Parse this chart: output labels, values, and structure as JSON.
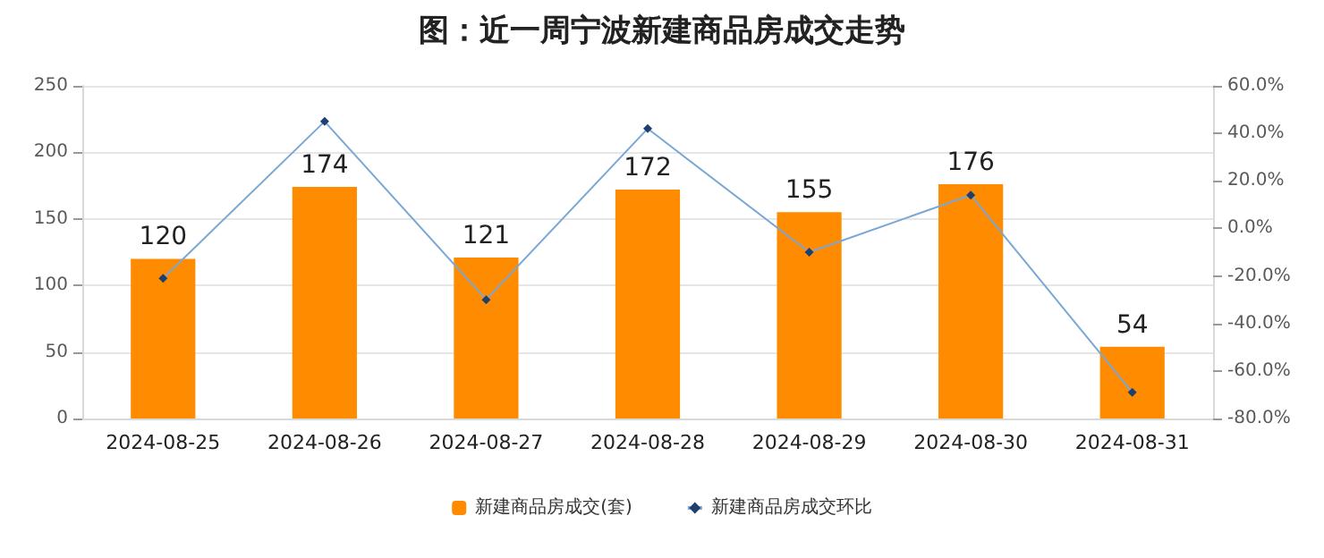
{
  "chart_data": {
    "type": "bar",
    "title": "图：近一周宁波新建商品房成交走势",
    "categories": [
      "2024-08-25",
      "2024-08-26",
      "2024-08-27",
      "2024-08-28",
      "2024-08-29",
      "2024-08-30",
      "2024-08-31"
    ],
    "series": [
      {
        "name": "新建商品房成交(套)",
        "color": "#ff8c00",
        "values": [
          120,
          174,
          121,
          172,
          155,
          176,
          54
        ],
        "value_labels": [
          "120",
          "174",
          "121",
          "172",
          "155",
          "176",
          "54"
        ]
      },
      {
        "name": "新建商品房成交环比",
        "type": "line",
        "axis": "y2",
        "color": "#7ba7d4",
        "marker": "diamond",
        "values": [
          -21,
          45,
          -30,
          42,
          -10,
          14,
          -69
        ]
      }
    ],
    "ylim": [
      0,
      250
    ],
    "yticks": [
      0,
      50,
      100,
      150,
      200,
      250
    ],
    "y2lim": [
      -80,
      60
    ],
    "y2ticks": [
      {
        "value": -80,
        "label": "-80.0%"
      },
      {
        "value": -60,
        "label": "-60.0%"
      },
      {
        "value": -40,
        "label": "-40.0%"
      },
      {
        "value": -20,
        "label": "-20.0%"
      },
      {
        "value": 0,
        "label": "0.0%"
      },
      {
        "value": 20,
        "label": "20.0%"
      },
      {
        "value": 40,
        "label": "40.0%"
      },
      {
        "value": 60,
        "label": "60.0%"
      }
    ],
    "grid": "y",
    "legend": "bottom"
  }
}
